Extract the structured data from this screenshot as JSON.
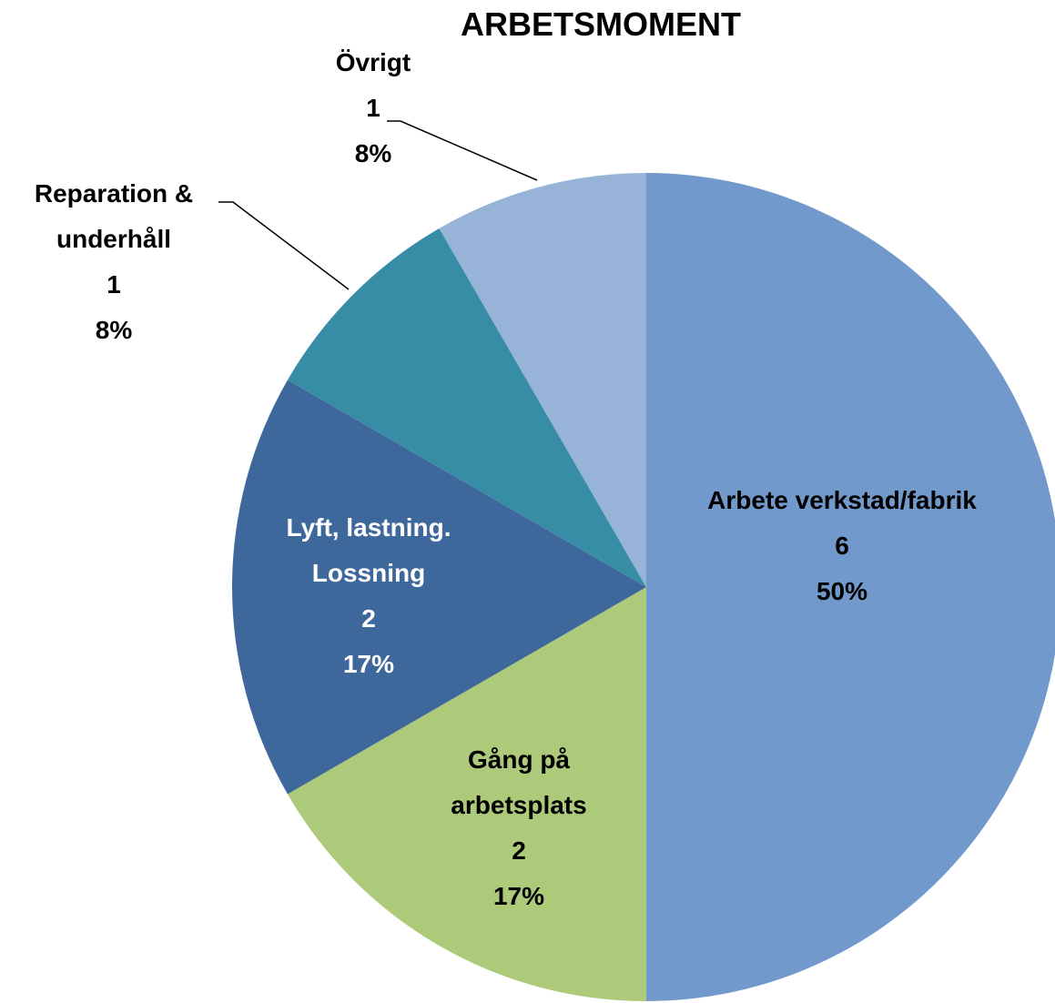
{
  "chart_data": {
    "type": "pie",
    "title": "ARBETSMOMENT",
    "categories": [
      "Arbete verkstad/fabrik",
      "Gång på arbetsplats",
      "Lyft, lastning. Lossning",
      "Reparation & underhåll",
      "Övrigt"
    ],
    "values": [
      6,
      2,
      2,
      1,
      1
    ],
    "percent_labels": [
      "50%",
      "17%",
      "17%",
      "8%",
      "8%"
    ],
    "colors": [
      "#7299cb",
      "#adc97a",
      "#3e689c",
      "#378da6",
      "#97b3d7"
    ]
  }
}
